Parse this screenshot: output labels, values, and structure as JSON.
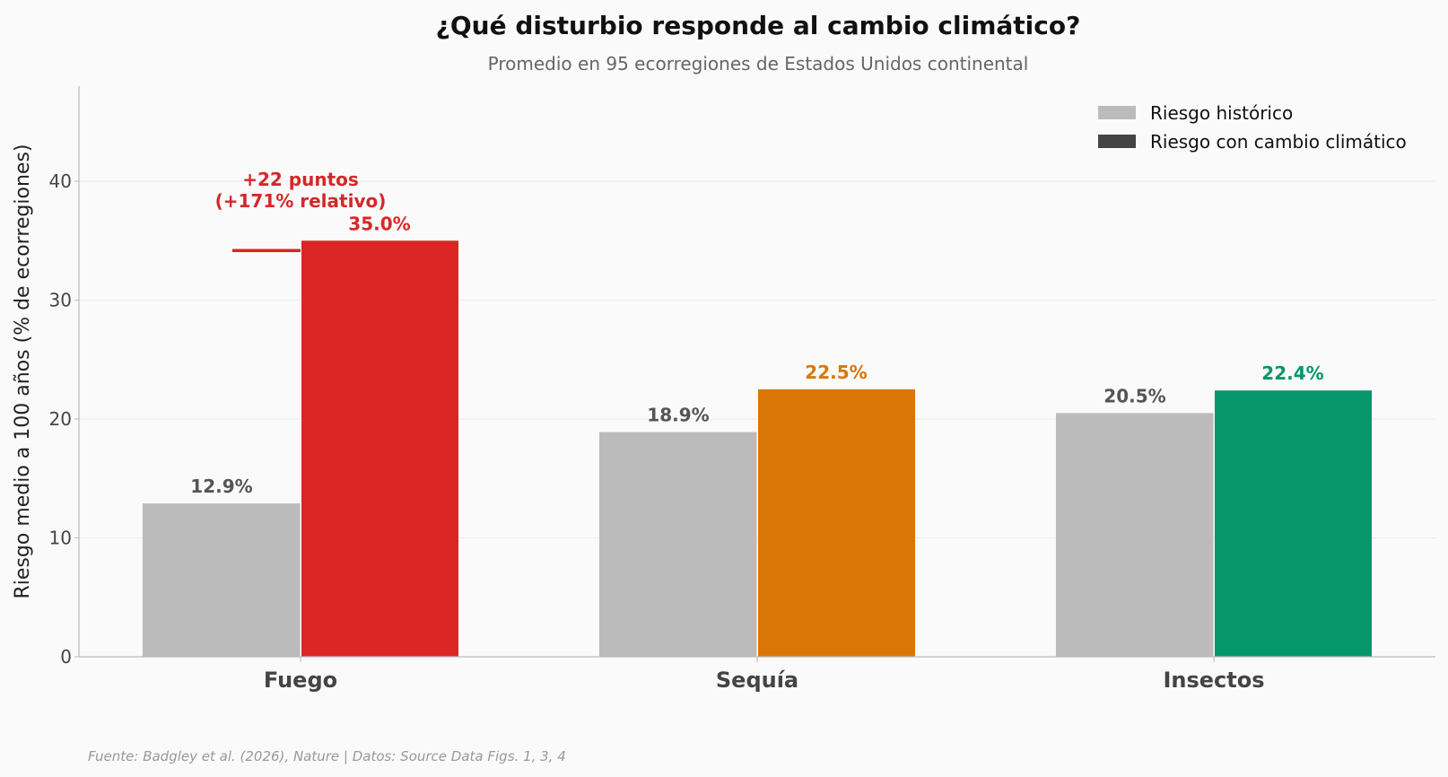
{
  "chart_data": {
    "type": "bar",
    "title": "¿Qué disturbio responde al cambio climático?",
    "subtitle": "Promedio en 95 ecorregiones de Estados Unidos continental",
    "ylabel": "Riesgo medio a 100 años (% de ecorregiones)",
    "xlabel": "",
    "ylim": [
      0,
      48
    ],
    "yticks": [
      0,
      10,
      20,
      30,
      40
    ],
    "grid": true,
    "legend_position": "top-right",
    "categories": [
      "Fuego",
      "Sequía",
      "Insectos"
    ],
    "series": [
      {
        "name": "Riesgo histórico",
        "values": [
          12.9,
          18.9,
          20.5
        ],
        "labels": [
          "12.9%",
          "18.9%",
          "20.5%"
        ],
        "color": "#bbbbbb",
        "label_color": "#555555",
        "legend_color": "#bbbbbb"
      },
      {
        "name": "Riesgo con cambio climático",
        "values": [
          35.0,
          22.5,
          22.4
        ],
        "labels": [
          "35.0%",
          "22.5%",
          "22.4%"
        ],
        "colors": [
          "#dc2626",
          "#d97706",
          "#059669"
        ],
        "legend_color": "#444444"
      }
    ],
    "annotation": {
      "category": "Fuego",
      "lines": [
        "+22 puntos",
        "(+171% relativo)"
      ],
      "color": "#d62728"
    },
    "source": "Fuente: Badgley et al. (2026), Nature | Datos: Source Data Figs. 1, 3, 4"
  }
}
